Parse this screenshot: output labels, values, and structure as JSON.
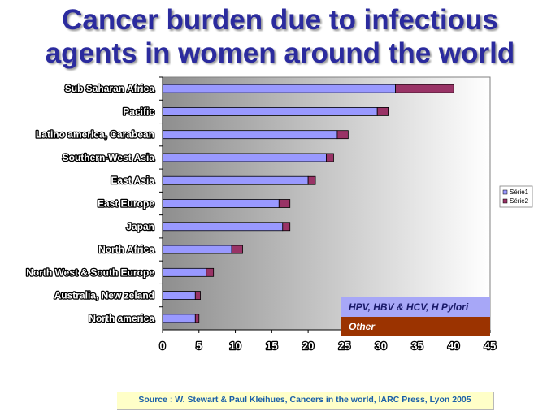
{
  "title_line1": "Cancer burden due to infectious",
  "title_line2": "agents in women around the world",
  "chart_data": {
    "type": "bar",
    "orientation": "horizontal",
    "stacked": true,
    "categories": [
      "Sub Saharan Africa",
      "Pacific",
      "Latino america, Carabean",
      "Southern-West Asia",
      "East Asia",
      "East Europe",
      "Japan",
      "North Africa",
      "North West & South Europe",
      "Australia, New zeland",
      "North america"
    ],
    "series": [
      {
        "name": "Série1",
        "color": "#9999ff",
        "values": [
          32,
          29.5,
          24,
          22.5,
          20,
          16,
          16.5,
          9.5,
          6,
          4.5,
          4.5
        ]
      },
      {
        "name": "Série2",
        "color": "#993366",
        "values": [
          8,
          1.5,
          1.5,
          1,
          1,
          1.5,
          1,
          1.5,
          1,
          0.7,
          0.5
        ]
      }
    ],
    "x_ticks": [
      0,
      5,
      10,
      15,
      20,
      25,
      30,
      35,
      40,
      45
    ],
    "xlim": [
      0,
      45
    ],
    "legend": {
      "placement": "right"
    }
  },
  "annotations": {
    "box1": "HPV, HBV & HCV, H Pylori",
    "box2": "Other"
  },
  "source": "Source : W. Stewart & Paul Kleihues, Cancers in the world, IARC Press, Lyon 2005"
}
